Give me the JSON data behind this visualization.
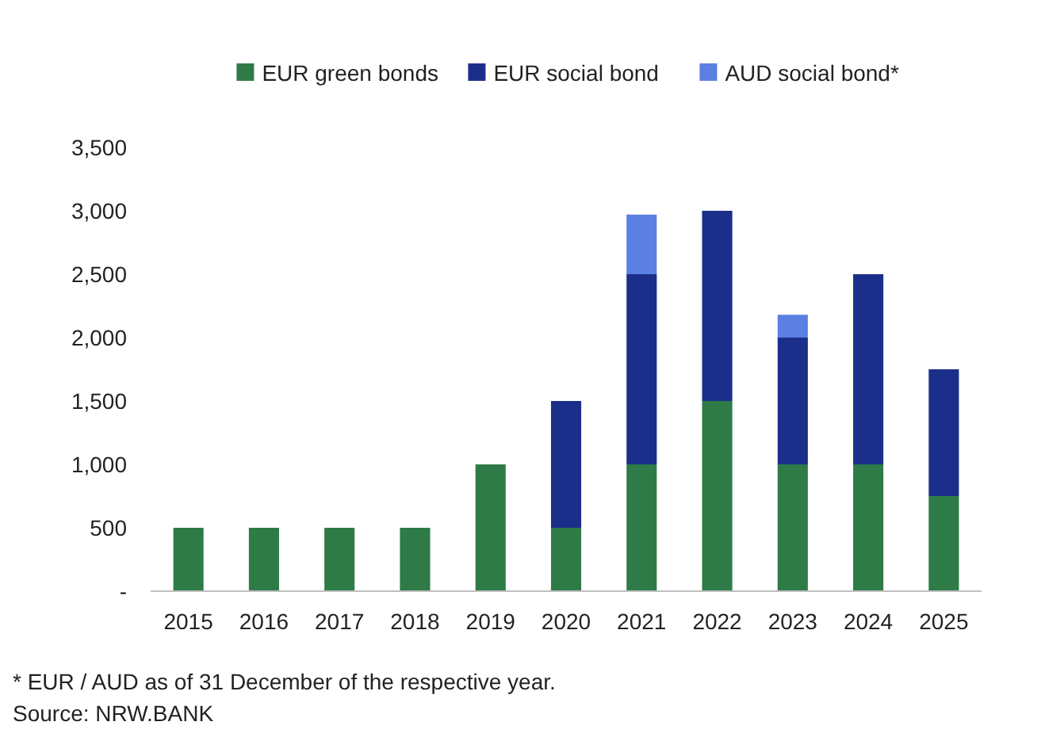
{
  "chart_data": {
    "type": "bar",
    "stacked": true,
    "categories": [
      "2015",
      "2016",
      "2017",
      "2018",
      "2019",
      "2020",
      "2021",
      "2022",
      "2023",
      "2024",
      "2025"
    ],
    "series": [
      {
        "name": "EUR green bonds",
        "color": "#2e7b47",
        "values": [
          500,
          500,
          500,
          500,
          1000,
          500,
          1000,
          1500,
          1000,
          1000,
          750
        ]
      },
      {
        "name": "EUR social bond",
        "color": "#1b2f8a",
        "values": [
          null,
          null,
          null,
          null,
          null,
          1000,
          1500,
          1500,
          1000,
          1500,
          1000
        ]
      },
      {
        "name": "AUD social bond*",
        "color": "#5b7fe3",
        "values": [
          null,
          null,
          null,
          null,
          null,
          null,
          470,
          null,
          180,
          null,
          null
        ]
      }
    ],
    "ylim": [
      0,
      3500
    ],
    "yticks": [
      {
        "value": 0,
        "label": "-"
      },
      {
        "value": 500,
        "label": "500"
      },
      {
        "value": 1000,
        "label": "1,000"
      },
      {
        "value": 1500,
        "label": "1,500"
      },
      {
        "value": 2000,
        "label": "2,000"
      },
      {
        "value": 2500,
        "label": "2,500"
      },
      {
        "value": 3000,
        "label": "3,000"
      },
      {
        "value": 3500,
        "label": "3,500"
      }
    ],
    "grid": false,
    "legend": "top",
    "annotations": [
      "* EUR / AUD as of 31 December of the respective year.",
      "Source: NRW.BANK"
    ]
  }
}
